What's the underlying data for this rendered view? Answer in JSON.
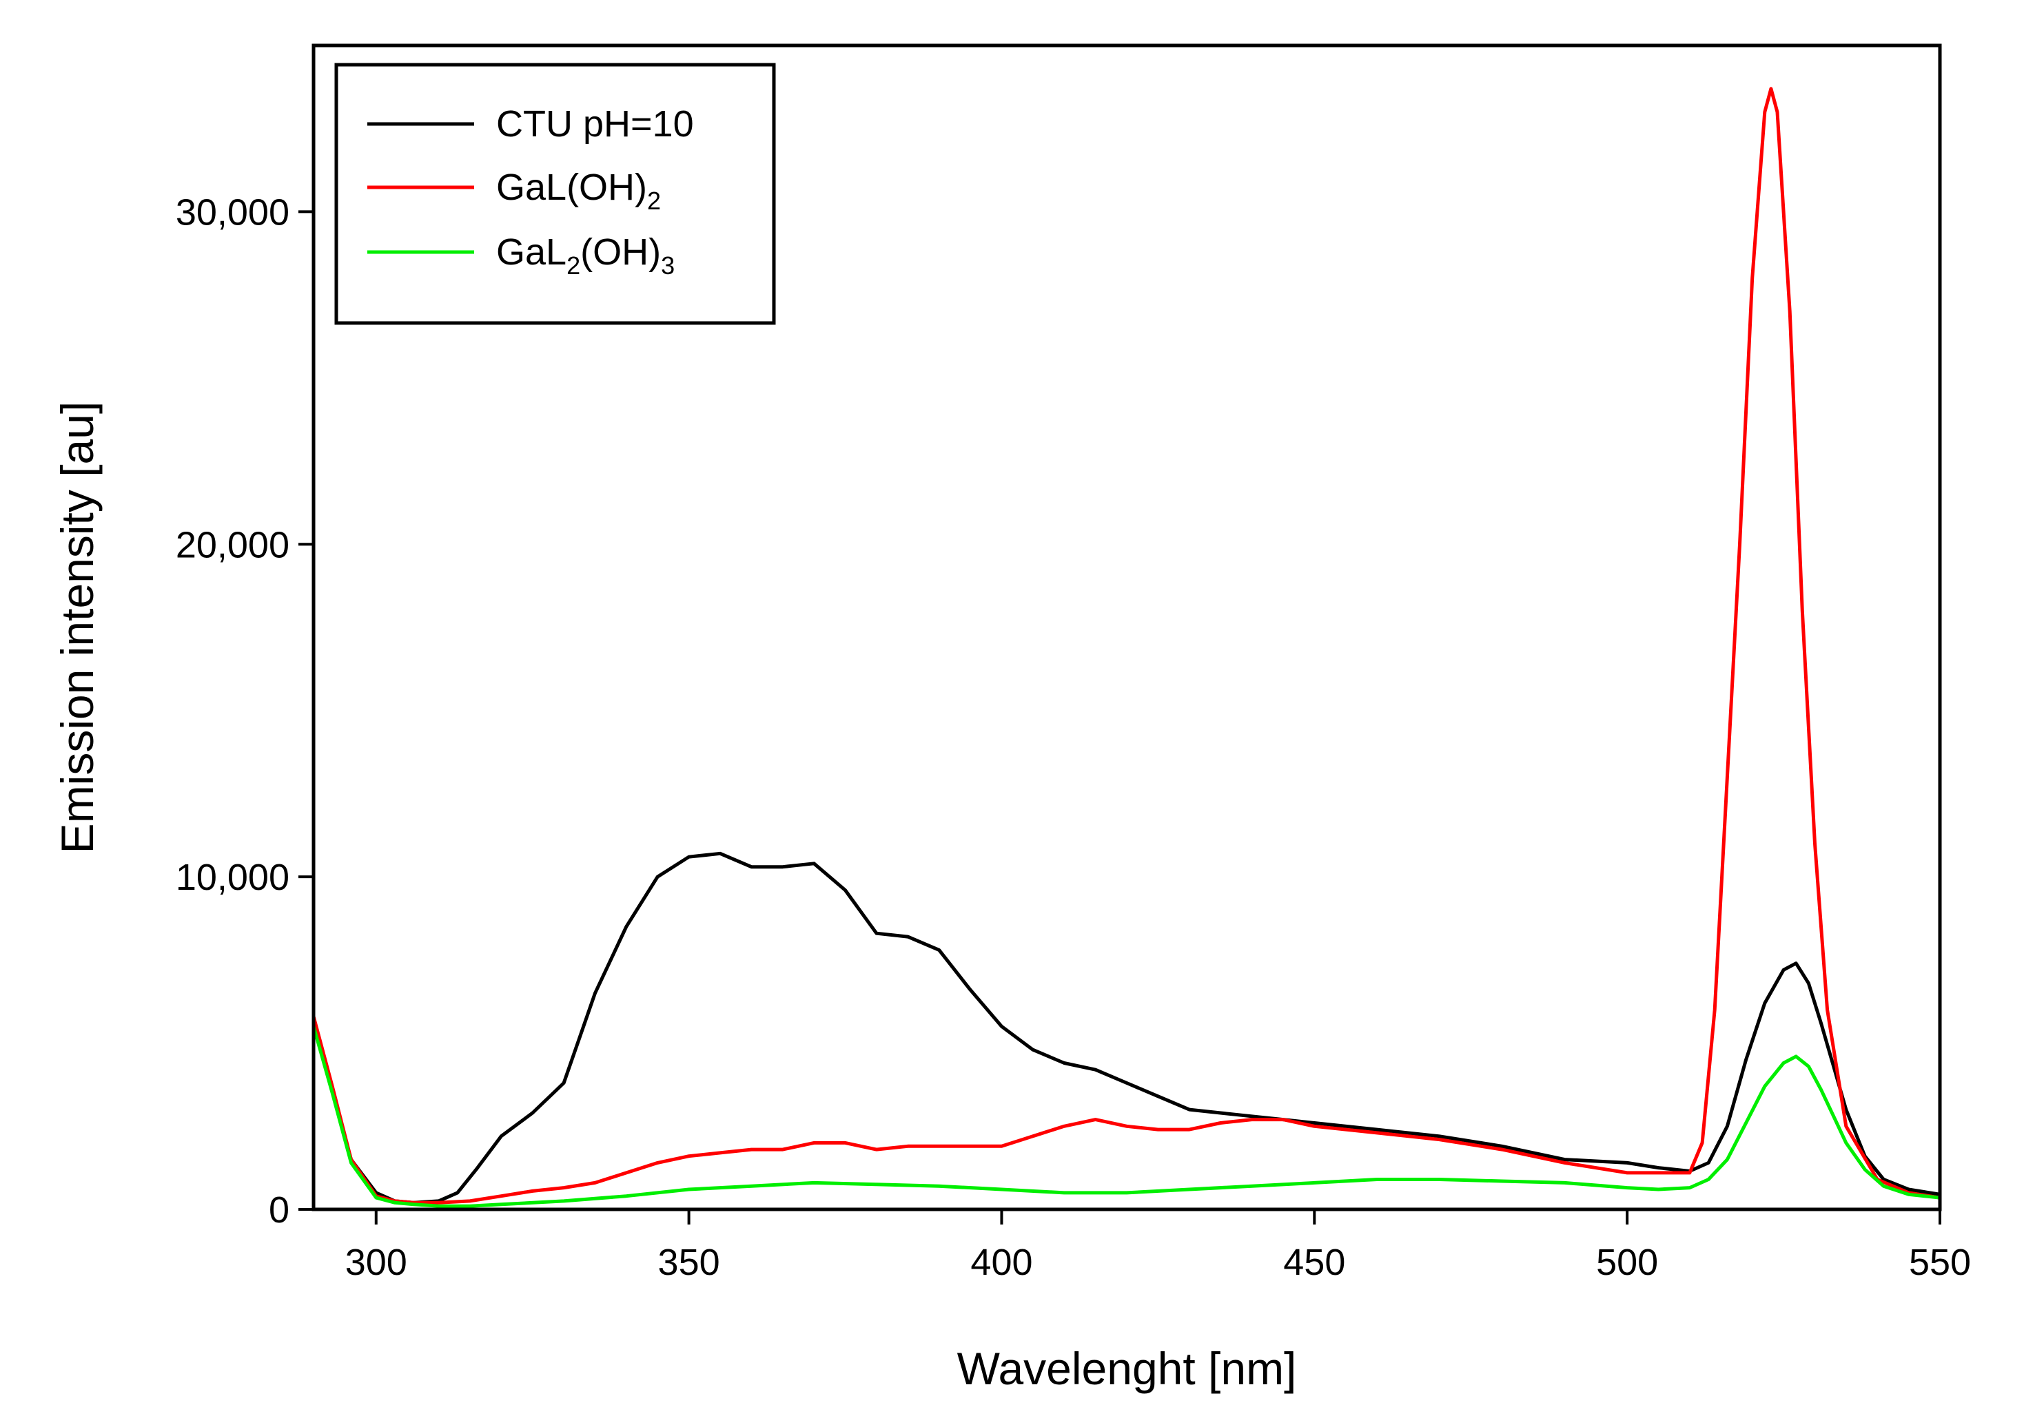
{
  "chart_data": {
    "type": "line",
    "title": "",
    "xlabel": "Wavelenght [nm]",
    "ylabel": "Emission intensity [au]",
    "xlim": [
      290,
      550
    ],
    "ylim": [
      0,
      35000
    ],
    "xticks": [
      300,
      350,
      400,
      450,
      500,
      550
    ],
    "xtick_labels": [
      "300",
      "350",
      "400",
      "450",
      "500",
      "550"
    ],
    "yticks": [
      0,
      10000,
      20000,
      30000
    ],
    "ytick_labels": [
      "0",
      "10,000",
      "20,000",
      "30,000"
    ],
    "grid": false,
    "legend_position": "top-left",
    "series": [
      {
        "name": "CTU pH=10",
        "legend_main": "CTU pH=10",
        "legend_subs": [],
        "color": "#000000",
        "x": [
          290,
          293,
          296,
          300,
          303,
          306,
          310,
          313,
          316,
          320,
          325,
          330,
          335,
          340,
          345,
          350,
          355,
          360,
          365,
          370,
          375,
          380,
          385,
          390,
          395,
          400,
          405,
          410,
          415,
          420,
          425,
          430,
          435,
          440,
          445,
          450,
          460,
          470,
          480,
          490,
          500,
          505,
          510,
          513,
          516,
          519,
          522,
          525,
          527,
          529,
          531,
          533,
          535,
          538,
          541,
          545,
          550
        ],
        "y": [
          5700,
          3600,
          1500,
          500,
          250,
          200,
          250,
          500,
          1200,
          2200,
          2900,
          3800,
          6500,
          8500,
          10000,
          10600,
          10700,
          10300,
          10300,
          10400,
          9600,
          8300,
          8200,
          7800,
          6600,
          5500,
          4800,
          4400,
          4200,
          3800,
          3400,
          3000,
          2900,
          2800,
          2700,
          2600,
          2400,
          2200,
          1900,
          1500,
          1400,
          1250,
          1150,
          1400,
          2500,
          4500,
          6200,
          7200,
          7400,
          6800,
          5600,
          4300,
          3000,
          1600,
          900,
          600,
          450
        ]
      },
      {
        "name": "GaL(OH)2",
        "legend_main": "GaL(OH)",
        "legend_subs": [
          "2"
        ],
        "color": "#ff0000",
        "x": [
          290,
          293,
          296,
          300,
          303,
          306,
          310,
          315,
          320,
          325,
          330,
          335,
          340,
          345,
          350,
          355,
          360,
          365,
          370,
          375,
          380,
          385,
          390,
          395,
          400,
          405,
          410,
          415,
          420,
          425,
          430,
          435,
          440,
          445,
          450,
          460,
          470,
          480,
          490,
          500,
          505,
          510,
          512,
          514,
          516,
          518,
          520,
          522,
          523,
          524,
          526,
          528,
          530,
          532,
          535,
          540,
          545,
          550
        ],
        "y": [
          5800,
          3700,
          1500,
          400,
          250,
          200,
          200,
          250,
          400,
          550,
          650,
          800,
          1100,
          1400,
          1600,
          1700,
          1800,
          1800,
          2000,
          2000,
          1800,
          1900,
          1900,
          1900,
          1900,
          2200,
          2500,
          2700,
          2500,
          2400,
          2400,
          2600,
          2700,
          2700,
          2500,
          2300,
          2100,
          1800,
          1400,
          1100,
          1100,
          1100,
          2000,
          6000,
          13000,
          20000,
          28000,
          33000,
          33700,
          33000,
          27000,
          18000,
          11000,
          6000,
          2500,
          900,
          500,
          350
        ]
      },
      {
        "name": "GaL2(OH)3",
        "legend_main": "GaL",
        "legend_subs": [
          "2",
          "3"
        ],
        "color": "#00ee00",
        "x": [
          290,
          293,
          296,
          300,
          303,
          306,
          310,
          315,
          320,
          330,
          340,
          350,
          360,
          370,
          380,
          390,
          400,
          410,
          420,
          430,
          440,
          450,
          460,
          470,
          480,
          490,
          500,
          505,
          510,
          513,
          516,
          519,
          522,
          525,
          527,
          529,
          531,
          533,
          535,
          538,
          541,
          545,
          550
        ],
        "y": [
          5500,
          3500,
          1400,
          350,
          200,
          150,
          100,
          100,
          150,
          250,
          400,
          600,
          700,
          800,
          750,
          700,
          600,
          500,
          500,
          600,
          700,
          800,
          900,
          900,
          850,
          800,
          650,
          600,
          650,
          900,
          1500,
          2600,
          3700,
          4400,
          4600,
          4300,
          3600,
          2800,
          2000,
          1200,
          700,
          450,
          350
        ]
      }
    ]
  }
}
